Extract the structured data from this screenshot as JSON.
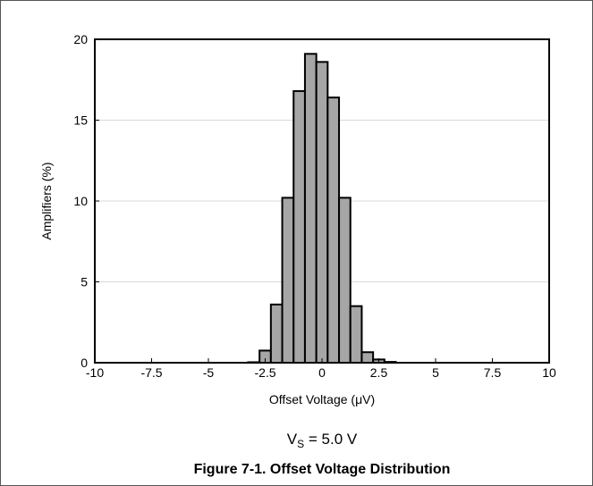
{
  "chart_data": {
    "type": "bar",
    "xlabel": "Offset Voltage (μV)",
    "ylabel": "Amplifiers (%)",
    "xlim": [
      -10,
      10
    ],
    "ylim": [
      0,
      20
    ],
    "x_ticks": [
      -10,
      -7.5,
      -5,
      -2.5,
      0,
      2.5,
      5,
      7.5,
      10
    ],
    "x_tick_labels": [
      "-10",
      "-7.5",
      "-5",
      "-2.5",
      "0",
      "2.5",
      "5",
      "7.5",
      "10"
    ],
    "y_ticks": [
      0,
      5,
      10,
      15,
      20
    ],
    "y_tick_labels": [
      "0",
      "5",
      "10",
      "15",
      "20"
    ],
    "bin_width": 0.5,
    "bin_centers": [
      -3,
      -2.5,
      -2,
      -1.5,
      -1,
      -0.5,
      0,
      0.5,
      1,
      1.5,
      2,
      2.5,
      3
    ],
    "values": [
      0.03,
      0.75,
      3.6,
      10.2,
      16.8,
      19.1,
      18.6,
      16.4,
      10.2,
      3.5,
      0.65,
      0.2,
      0.05
    ],
    "grid": "horizontal",
    "bar_color": "#a6a6a6",
    "edge_color": "#000000"
  },
  "condition": {
    "prefix": "V",
    "subscript": "S",
    "suffix": " = 5.0 V"
  },
  "caption": "Figure 7-1. Offset Voltage Distribution"
}
